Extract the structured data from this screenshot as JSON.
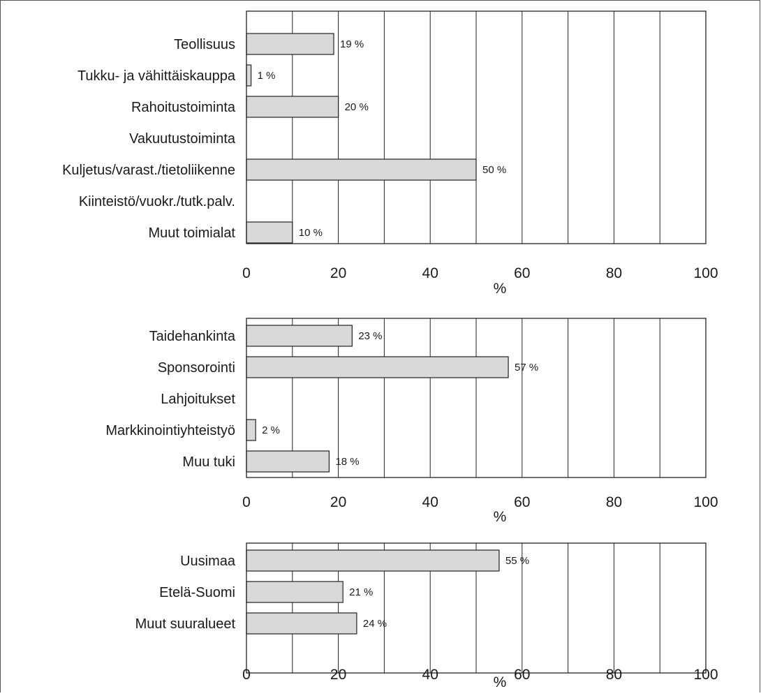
{
  "chart_data": [
    {
      "type": "bar",
      "orientation": "horizontal",
      "categories": [
        "Teollisuus",
        "Tukku- ja vähittäiskauppa",
        "Rahoitustoiminta",
        "Vakuutustoiminta",
        "Kuljetus/varast./tietoliikenne",
        "Kiinteistö/vuokr./tutk.palv.",
        "Muut toimialat"
      ],
      "values": [
        19,
        1,
        20,
        null,
        50,
        null,
        10
      ],
      "labels": [
        "19 %",
        "1 %",
        "20 %",
        "",
        "50 %",
        "",
        "10 %"
      ],
      "xlabel": "%",
      "xlim": [
        0,
        100
      ],
      "xticks": [
        0,
        20,
        40,
        60,
        80,
        100
      ],
      "tick_labels": [
        "0",
        "20",
        "40",
        "60",
        "80",
        "100"
      ],
      "grid": true,
      "bar_color": "#d9d9d9"
    },
    {
      "type": "bar",
      "orientation": "horizontal",
      "categories": [
        "Taidehankinta",
        "Sponsorointi",
        "Lahjoitukset",
        "Markkinointiyhteistyö",
        "Muu tuki"
      ],
      "values": [
        23,
        57,
        null,
        2,
        18
      ],
      "labels": [
        "23 %",
        "57 %",
        "",
        "2 %",
        "18 %"
      ],
      "xlabel": "%",
      "xlim": [
        0,
        100
      ],
      "xticks": [
        0,
        20,
        40,
        60,
        80,
        100
      ],
      "tick_labels": [
        "0",
        "20",
        "40",
        "60",
        "80",
        "100"
      ],
      "grid": true,
      "bar_color": "#d9d9d9"
    },
    {
      "type": "bar",
      "orientation": "horizontal",
      "categories": [
        "Uusimaa",
        "Etelä-Suomi",
        "Muut suuralueet"
      ],
      "values": [
        55,
        21,
        24
      ],
      "labels": [
        "55 %",
        "21 %",
        "24 %"
      ],
      "xlabel": "%",
      "xlim": [
        0,
        100
      ],
      "xticks": [
        0,
        20,
        40,
        60,
        80,
        100
      ],
      "tick_labels": [
        "0",
        "20",
        "40",
        "60",
        "80",
        "100"
      ],
      "grid": true,
      "bar_color": "#d9d9d9"
    }
  ]
}
